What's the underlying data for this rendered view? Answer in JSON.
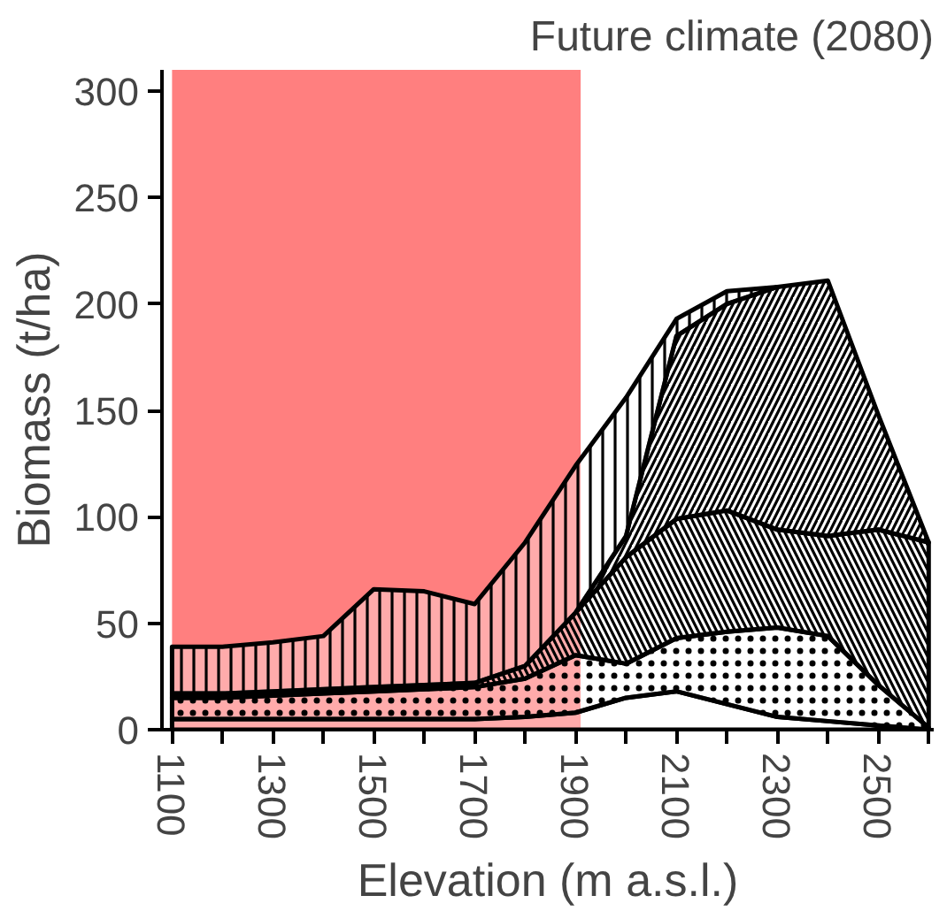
{
  "chart_data": {
    "type": "area",
    "stacked": true,
    "title": "Future climate (2080)",
    "xlabel": "Elevation (m a.s.l.)",
    "ylabel": "Biomass (t/ha)",
    "x": [
      1100,
      1200,
      1300,
      1400,
      1500,
      1600,
      1700,
      1800,
      1900,
      2000,
      2100,
      2200,
      2300,
      2400,
      2500,
      2600
    ],
    "series": [
      {
        "color": "#000000",
        "values": [
          5,
          5,
          5,
          5,
          5,
          5,
          5,
          6,
          8,
          15,
          18,
          12,
          6,
          4,
          2,
          0
        ]
      },
      {
        "color": "#000000",
        "values": [
          10,
          10,
          11,
          12,
          13,
          14,
          15,
          18,
          27,
          16,
          25,
          34,
          42,
          40,
          19,
          1
        ]
      },
      {
        "color": "#000000",
        "values": [
          2,
          2,
          2,
          2,
          2,
          2,
          2,
          6,
          20,
          50,
          56,
          57,
          46,
          47,
          73,
          87
        ]
      },
      {
        "color": "#000000",
        "values": [
          null,
          null,
          null,
          null,
          null,
          null,
          null,
          null,
          0,
          10,
          86,
          97,
          114,
          120,
          54,
          0
        ]
      },
      {
        "color": "#000000",
        "values": [
          22,
          22,
          23,
          25,
          46,
          44,
          37,
          58,
          69,
          65,
          8,
          6,
          0,
          null,
          null,
          null
        ]
      }
    ],
    "xlim": [
      1080,
      2610
    ],
    "ylim": [
      0,
      310
    ],
    "xticks": [
      1100,
      {
        "value": 1200,
        "label": null
      },
      1300,
      {
        "value": 1400,
        "label": null
      },
      1500,
      {
        "value": 1600,
        "label": null
      },
      1700,
      {
        "value": 1800,
        "label": null
      },
      1900,
      {
        "value": 2000,
        "label": null
      },
      2100,
      {
        "value": 2200,
        "label": null
      },
      2300,
      {
        "value": 2400,
        "label": null
      },
      2500,
      {
        "value": 2600,
        "label": null
      }
    ],
    "yticks": [
      0,
      50,
      100,
      150,
      200,
      250,
      300
    ],
    "bands": [
      {
        "axis": "x",
        "from": 1100,
        "to": 1910,
        "color": "#ff0000"
      }
    ],
    "grid": false
  }
}
